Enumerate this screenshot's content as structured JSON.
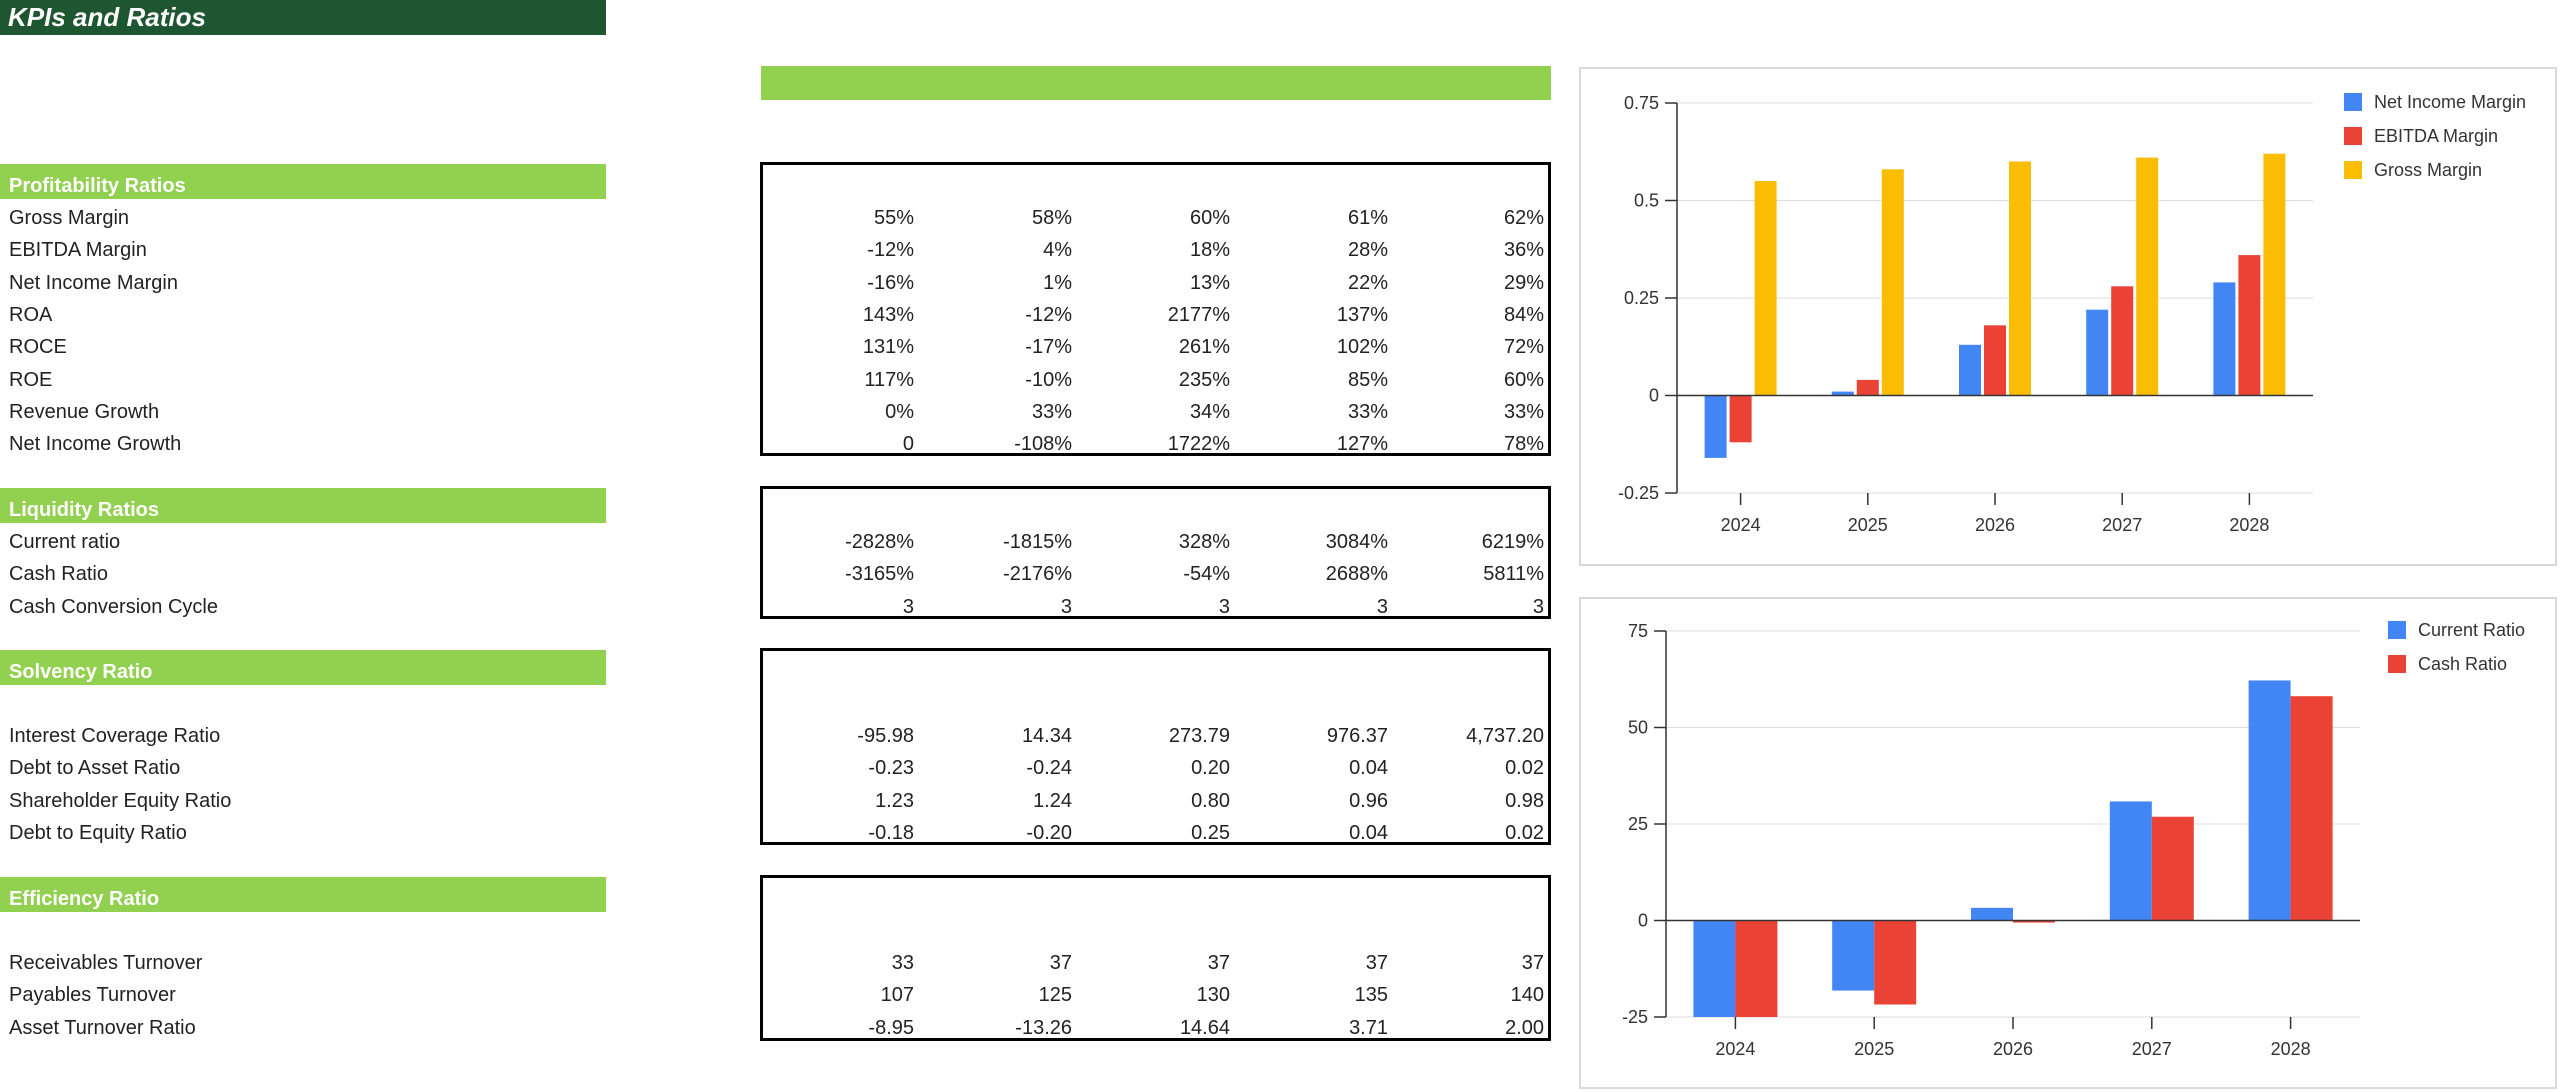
{
  "title": "KPIs and Ratios",
  "years": [
    "2024",
    "2025",
    "2026",
    "2027",
    "2028"
  ],
  "sections": [
    {
      "name": "Profitability Ratios",
      "rows": [
        {
          "label": "Gross Margin",
          "values": [
            "55%",
            "58%",
            "60%",
            "61%",
            "62%"
          ]
        },
        {
          "label": "EBITDA Margin",
          "values": [
            "-12%",
            "4%",
            "18%",
            "28%",
            "36%"
          ]
        },
        {
          "label": "Net Income Margin",
          "values": [
            "-16%",
            "1%",
            "13%",
            "22%",
            "29%"
          ]
        },
        {
          "label": "ROA",
          "values": [
            "143%",
            "-12%",
            "2177%",
            "137%",
            "84%"
          ]
        },
        {
          "label": "ROCE",
          "values": [
            "131%",
            "-17%",
            "261%",
            "102%",
            "72%"
          ]
        },
        {
          "label": "ROE",
          "values": [
            "117%",
            "-10%",
            "235%",
            "85%",
            "60%"
          ]
        },
        {
          "label": "Revenue Growth",
          "values": [
            "0%",
            "33%",
            "34%",
            "33%",
            "33%"
          ]
        },
        {
          "label": "Net Income Growth",
          "values": [
            "0",
            "-108%",
            "1722%",
            "127%",
            "78%"
          ]
        }
      ]
    },
    {
      "name": "Liquidity Ratios",
      "rows": [
        {
          "label": "Current ratio",
          "values": [
            "-2828%",
            "-1815%",
            "328%",
            "3084%",
            "6219%"
          ]
        },
        {
          "label": "Cash Ratio",
          "values": [
            "-3165%",
            "-2176%",
            "-54%",
            "2688%",
            "5811%"
          ]
        },
        {
          "label": "Cash Conversion Cycle",
          "values": [
            "3",
            "3",
            "3",
            "3",
            "3"
          ]
        }
      ]
    },
    {
      "name": "Solvency Ratio",
      "rows": [
        {
          "label": "Interest Coverage Ratio",
          "values": [
            "-95.98",
            "14.34",
            "273.79",
            "976.37",
            "4,737.20"
          ]
        },
        {
          "label": "Debt to Asset Ratio",
          "values": [
            "-0.23",
            "-0.24",
            "0.20",
            "0.04",
            "0.02"
          ]
        },
        {
          "label": "Shareholder Equity Ratio",
          "values": [
            "1.23",
            "1.24",
            "0.80",
            "0.96",
            "0.98"
          ]
        },
        {
          "label": "Debt to Equity Ratio",
          "values": [
            "-0.18",
            "-0.20",
            "0.25",
            "0.04",
            "0.02"
          ]
        }
      ]
    },
    {
      "name": "Efficiency Ratio",
      "rows": [
        {
          "label": "Receivables Turnover",
          "values": [
            "33",
            "37",
            "37",
            "37",
            "37"
          ]
        },
        {
          "label": "Payables Turnover",
          "values": [
            "107",
            "125",
            "130",
            "135",
            "140"
          ]
        },
        {
          "label": "Asset Turnover Ratio",
          "values": [
            "-8.95",
            "-13.26",
            "14.64",
            "3.71",
            "2.00"
          ]
        }
      ]
    }
  ],
  "chart_data": [
    {
      "type": "bar",
      "categories": [
        "2024",
        "2025",
        "2026",
        "2027",
        "2028"
      ],
      "series": [
        {
          "name": "Net Income Margin",
          "color": "#4285f4",
          "values": [
            -0.16,
            0.01,
            0.13,
            0.22,
            0.29
          ]
        },
        {
          "name": "EBITDA Margin",
          "color": "#ea4335",
          "values": [
            -0.12,
            0.04,
            0.18,
            0.28,
            0.36
          ]
        },
        {
          "name": "Gross Margin",
          "color": "#fbbc04",
          "values": [
            0.55,
            0.58,
            0.6,
            0.61,
            0.62
          ]
        }
      ],
      "ylim": [
        -0.25,
        0.75
      ],
      "yticks": [
        -0.25,
        0,
        0.25,
        0.5,
        0.75
      ],
      "ytick_labels": [
        "-0.25",
        "0",
        "0.25",
        "0.5",
        "0.75"
      ],
      "legend": "top-right",
      "grid": true
    },
    {
      "type": "bar",
      "categories": [
        "2024",
        "2025",
        "2026",
        "2027",
        "2028"
      ],
      "series": [
        {
          "name": "Current Ratio",
          "color": "#4285f4",
          "values": [
            -28.28,
            -18.15,
            3.28,
            30.84,
            62.19
          ]
        },
        {
          "name": "Cash Ratio",
          "color": "#ea4335",
          "values": [
            -31.65,
            -21.76,
            -0.54,
            26.88,
            58.11
          ]
        }
      ],
      "ylim": [
        -25,
        75
      ],
      "yticks": [
        -25,
        0,
        25,
        50,
        75
      ],
      "ytick_labels": [
        "-25",
        "0",
        "25",
        "50",
        "75"
      ],
      "legend": "top-right",
      "grid": true
    }
  ]
}
